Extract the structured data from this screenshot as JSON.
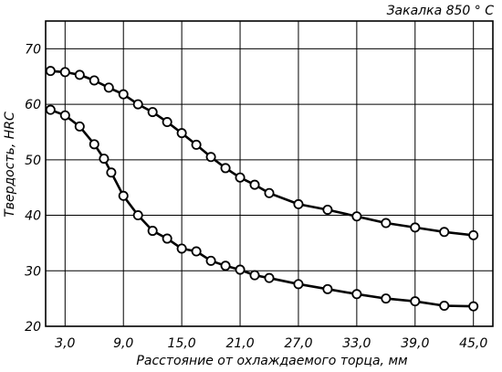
{
  "chart_data": {
    "type": "line",
    "title": "Закалка 850 ° С",
    "xlabel": "Расстояние от охлаждаемого торца, мм",
    "ylabel": "Твердость, HRC",
    "xlim": [
      1.0,
      47.0
    ],
    "ylim": [
      20,
      75
    ],
    "x_ticks": [
      3.0,
      9.0,
      15.0,
      21.0,
      27.0,
      33.0,
      39.0,
      45.0
    ],
    "x_tick_labels": [
      "3,0",
      "9,0",
      "15,0",
      "21,0",
      "27,0",
      "33,0",
      "39,0",
      "45,0"
    ],
    "y_ticks": [
      20,
      30,
      40,
      50,
      60,
      70
    ],
    "y_tick_labels": [
      "20",
      "30",
      "40",
      "50",
      "60",
      "70"
    ],
    "grid": true,
    "legend": "none",
    "series": [
      {
        "values": [
          {
            "x": 1.5,
            "y": 66.0
          },
          {
            "x": 3.0,
            "y": 65.8
          },
          {
            "x": 4.5,
            "y": 65.3
          },
          {
            "x": 6.0,
            "y": 64.3
          },
          {
            "x": 7.5,
            "y": 63.0
          },
          {
            "x": 9.0,
            "y": 61.8
          },
          {
            "x": 10.5,
            "y": 60.0
          },
          {
            "x": 12.0,
            "y": 58.6
          },
          {
            "x": 13.5,
            "y": 56.8
          },
          {
            "x": 15.0,
            "y": 54.8
          },
          {
            "x": 16.5,
            "y": 52.7
          },
          {
            "x": 18.0,
            "y": 50.5
          },
          {
            "x": 19.5,
            "y": 48.5
          },
          {
            "x": 21.0,
            "y": 46.8
          },
          {
            "x": 22.5,
            "y": 45.5
          },
          {
            "x": 24.0,
            "y": 44.0
          },
          {
            "x": 27.0,
            "y": 42.0
          },
          {
            "x": 30.0,
            "y": 41.0
          },
          {
            "x": 33.0,
            "y": 39.8
          },
          {
            "x": 36.0,
            "y": 38.6
          },
          {
            "x": 39.0,
            "y": 37.8
          },
          {
            "x": 42.0,
            "y": 37.0
          },
          {
            "x": 45.0,
            "y": 36.4
          }
        ]
      },
      {
        "values": [
          {
            "x": 1.5,
            "y": 59.0
          },
          {
            "x": 3.0,
            "y": 58.0
          },
          {
            "x": 4.5,
            "y": 56.0
          },
          {
            "x": 6.0,
            "y": 52.8
          },
          {
            "x": 7.0,
            "y": 50.2
          },
          {
            "x": 7.75,
            "y": 47.7
          },
          {
            "x": 9.0,
            "y": 43.5
          },
          {
            "x": 10.5,
            "y": 40.0
          },
          {
            "x": 12.0,
            "y": 37.2
          },
          {
            "x": 13.5,
            "y": 35.8
          },
          {
            "x": 15.0,
            "y": 34.0
          },
          {
            "x": 16.5,
            "y": 33.5
          },
          {
            "x": 18.0,
            "y": 31.8
          },
          {
            "x": 19.5,
            "y": 30.9
          },
          {
            "x": 21.0,
            "y": 30.2
          },
          {
            "x": 22.5,
            "y": 29.2
          },
          {
            "x": 24.0,
            "y": 28.7
          },
          {
            "x": 27.0,
            "y": 27.6
          },
          {
            "x": 30.0,
            "y": 26.7
          },
          {
            "x": 33.0,
            "y": 25.8
          },
          {
            "x": 36.0,
            "y": 25.0
          },
          {
            "x": 39.0,
            "y": 24.5
          },
          {
            "x": 42.0,
            "y": 23.7
          },
          {
            "x": 45.0,
            "y": 23.6
          }
        ]
      }
    ]
  }
}
